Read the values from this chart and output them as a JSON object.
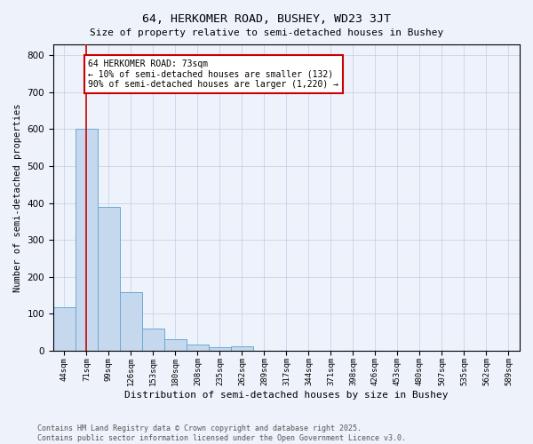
{
  "title": "64, HERKOMER ROAD, BUSHEY, WD23 3JT",
  "subtitle": "Size of property relative to semi-detached houses in Bushey",
  "xlabel": "Distribution of semi-detached houses by size in Bushey",
  "ylabel": "Number of semi-detached properties",
  "categories": [
    "44sqm",
    "71sqm",
    "99sqm",
    "126sqm",
    "153sqm",
    "180sqm",
    "208sqm",
    "235sqm",
    "262sqm",
    "289sqm",
    "317sqm",
    "344sqm",
    "371sqm",
    "398sqm",
    "426sqm",
    "453sqm",
    "480sqm",
    "507sqm",
    "535sqm",
    "562sqm",
    "589sqm"
  ],
  "values": [
    118,
    600,
    390,
    158,
    58,
    30,
    15,
    8,
    10,
    0,
    0,
    0,
    0,
    0,
    0,
    0,
    0,
    0,
    0,
    0,
    0
  ],
  "bar_color": "#c5d8ee",
  "bar_edge_color": "#6aaad4",
  "highlight_line_color": "#cc0000",
  "ylim": [
    0,
    830
  ],
  "yticks": [
    0,
    100,
    200,
    300,
    400,
    500,
    600,
    700,
    800
  ],
  "annotation_text": "64 HERKOMER ROAD: 73sqm\n← 10% of semi-detached houses are smaller (132)\n90% of semi-detached houses are larger (1,220) →",
  "annotation_box_color": "#cc0000",
  "footnote": "Contains HM Land Registry data © Crown copyright and database right 2025.\nContains public sector information licensed under the Open Government Licence v3.0.",
  "bg_color": "#eef2fa",
  "plot_bg_color": "#eef2fa",
  "grid_color": "#c0cfe8"
}
